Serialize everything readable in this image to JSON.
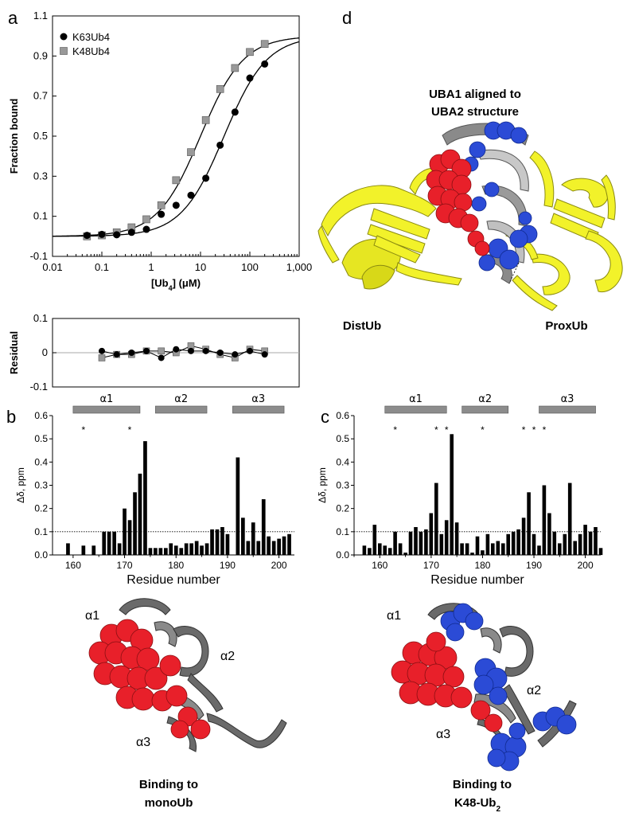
{
  "panels": {
    "a": "a",
    "b": "b",
    "c": "c",
    "d": "d"
  },
  "chart_data": [
    {
      "type": "scatter",
      "panel": "a",
      "xscale": "log",
      "xlabel": "[Ub4] (μM)",
      "ylabel": "Fraction bound",
      "xlim": [
        0.01,
        1000
      ],
      "ylim": [
        -0.1,
        1.1
      ],
      "x_tick_labels": [
        "0.01",
        "0.1",
        "1",
        "10",
        "100",
        "1,000"
      ],
      "x_tick_values": [
        0.01,
        0.1,
        1,
        10,
        100,
        1000
      ],
      "y_ticks": [
        -0.1,
        0.1,
        0.3,
        0.5,
        0.7,
        0.9,
        1.1
      ],
      "y_tick_labels": [
        "-0.1",
        "0.1",
        "0.3",
        "0.5",
        "0.7",
        "0.9",
        "1.1"
      ],
      "legend": "top-left",
      "series": [
        {
          "name": "K63Ub4",
          "marker": "circle",
          "color": "#000000",
          "kd": 30,
          "x": [
            0.05,
            0.1,
            0.2,
            0.4,
            0.8,
            1.6,
            3.2,
            6.4,
            12.8,
            25,
            50,
            100,
            200
          ],
          "y": [
            0.005,
            0.01,
            0.008,
            0.02,
            0.035,
            0.11,
            0.155,
            0.205,
            0.29,
            0.455,
            0.62,
            0.79,
            0.86
          ]
        },
        {
          "name": "K48Ub4",
          "marker": "square",
          "color": "#999999",
          "kd": 10,
          "x": [
            0.05,
            0.1,
            0.2,
            0.4,
            0.8,
            1.6,
            3.2,
            6.4,
            12.8,
            25,
            50,
            100,
            200
          ],
          "y": [
            0.0,
            0.005,
            0.02,
            0.045,
            0.085,
            0.155,
            0.28,
            0.42,
            0.58,
            0.735,
            0.84,
            0.92,
            0.96
          ]
        }
      ]
    },
    {
      "type": "scatter",
      "panel": "a-residual",
      "xscale": "log",
      "ylabel": "Residual",
      "xlim": [
        0.01,
        1000
      ],
      "ylim": [
        -0.1,
        0.1
      ],
      "y_ticks": [
        -0.1,
        0,
        0.1
      ],
      "y_tick_labels": [
        "-0.1",
        "0",
        "0.1"
      ],
      "series": [
        {
          "name": "K63Ub4",
          "marker": "circle",
          "color": "#000000",
          "x": [
            0.1,
            0.2,
            0.4,
            0.8,
            1.6,
            3.2,
            6.4,
            12.8,
            25,
            50,
            100,
            200
          ],
          "y": [
            0.005,
            -0.005,
            0.0,
            0.005,
            -0.015,
            0.01,
            0.005,
            0.005,
            0.0,
            -0.005,
            0.005,
            -0.005
          ]
        },
        {
          "name": "K48Ub4",
          "marker": "square",
          "color": "#999999",
          "x": [
            0.1,
            0.2,
            0.4,
            0.8,
            1.6,
            3.2,
            6.4,
            12.8,
            25,
            50,
            100,
            200
          ],
          "y": [
            -0.015,
            -0.005,
            -0.005,
            0.005,
            0.005,
            0.0,
            0.02,
            0.01,
            -0.005,
            -0.015,
            0.01,
            0.005
          ]
        }
      ]
    },
    {
      "type": "bar",
      "panel": "b",
      "xlabel": "Residue number",
      "ylabel": "Δδ, ppm",
      "xlim": [
        156,
        203
      ],
      "ylim": [
        0,
        0.6
      ],
      "x_ticks": [
        160,
        170,
        180,
        190,
        200
      ],
      "y_ticks": [
        0.0,
        0.1,
        0.2,
        0.3,
        0.4,
        0.5,
        0.6
      ],
      "y_tick_labels": [
        "0.0",
        "0.1",
        "0.2",
        "0.3",
        "0.4",
        "0.5",
        "0.6"
      ],
      "threshold": 0.1,
      "stars": [
        162,
        171
      ],
      "helices": [
        {
          "label": "α1",
          "start": 160,
          "end": 173
        },
        {
          "label": "α2",
          "start": 176,
          "end": 186
        },
        {
          "label": "α3",
          "start": 191,
          "end": 201
        }
      ],
      "x": [
        159,
        162,
        164,
        166,
        167,
        168,
        169,
        170,
        171,
        172,
        173,
        174,
        175,
        176,
        177,
        178,
        179,
        180,
        181,
        182,
        183,
        184,
        185,
        186,
        187,
        188,
        189,
        190,
        192,
        193,
        194,
        195,
        196,
        197,
        198,
        199,
        200,
        201,
        202
      ],
      "values": [
        0.05,
        0.04,
        0.04,
        0.1,
        0.1,
        0.1,
        0.05,
        0.2,
        0.15,
        0.27,
        0.35,
        0.49,
        0.03,
        0.03,
        0.03,
        0.03,
        0.05,
        0.04,
        0.03,
        0.05,
        0.05,
        0.06,
        0.04,
        0.05,
        0.11,
        0.11,
        0.12,
        0.09,
        0.42,
        0.16,
        0.06,
        0.14,
        0.06,
        0.24,
        0.08,
        0.06,
        0.07,
        0.08,
        0.09
      ]
    },
    {
      "type": "bar",
      "panel": "c",
      "xlabel": "Residue number",
      "ylabel": "Δδ, ppm",
      "xlim": [
        155,
        203
      ],
      "ylim": [
        0,
        0.6
      ],
      "x_ticks": [
        160,
        170,
        180,
        190,
        200
      ],
      "y_ticks": [
        0.0,
        0.1,
        0.2,
        0.3,
        0.4,
        0.5,
        0.6
      ],
      "y_tick_labels": [
        "0.0",
        "0.1",
        "0.2",
        "0.3",
        "0.4",
        "0.5",
        "0.6"
      ],
      "threshold": 0.1,
      "stars": [
        163,
        171,
        173,
        180,
        188,
        190,
        192
      ],
      "helices": [
        {
          "label": "α1",
          "start": 161,
          "end": 173
        },
        {
          "label": "α2",
          "start": 176,
          "end": 185
        },
        {
          "label": "α3",
          "start": 191,
          "end": 202
        }
      ],
      "x": [
        157,
        158,
        159,
        160,
        161,
        162,
        163,
        164,
        165,
        166,
        167,
        168,
        169,
        170,
        171,
        172,
        173,
        174,
        175,
        176,
        177,
        178,
        179,
        180,
        181,
        182,
        183,
        184,
        185,
        186,
        187,
        188,
        189,
        190,
        191,
        192,
        193,
        194,
        195,
        196,
        197,
        198,
        199,
        200,
        201,
        202,
        203
      ],
      "values": [
        0.04,
        0.03,
        0.13,
        0.05,
        0.04,
        0.03,
        0.1,
        0.05,
        0.01,
        0.1,
        0.12,
        0.1,
        0.11,
        0.18,
        0.31,
        0.09,
        0.15,
        0.52,
        0.14,
        0.05,
        0.05,
        0.01,
        0.08,
        0.02,
        0.09,
        0.05,
        0.06,
        0.05,
        0.09,
        0.1,
        0.11,
        0.16,
        0.27,
        0.09,
        0.04,
        0.3,
        0.18,
        0.1,
        0.05,
        0.09,
        0.31,
        0.06,
        0.09,
        0.13,
        0.1,
        0.12,
        0.03
      ]
    }
  ],
  "labels": {
    "b_helix_a1": "α1",
    "b_helix_a2": "α2",
    "b_helix_a3": "α3",
    "c_helix_a1": "α1",
    "c_helix_a2": "α2",
    "c_helix_a3": "α3",
    "struct_b": {
      "a1": "α1",
      "a2": "α2",
      "a3": "α3",
      "caption_1": "Binding to",
      "caption_2": "monoUb"
    },
    "struct_c": {
      "a1": "α1",
      "a2": "α2",
      "a3": "α3",
      "caption_1": "Binding to",
      "caption_2": "K48-Ub",
      "caption_2_sub": "2"
    },
    "struct_d": {
      "title_1": "UBA1 aligned to",
      "title_2": "UBA2 structure",
      "left": "DistUb",
      "right": "ProxUb"
    }
  },
  "colors": {
    "red_sphere": "#e8202a",
    "blue_sphere": "#2b4bd6",
    "yellow_ribbon": "#f2f22a",
    "gray_ribbon": "#707070",
    "helix_bar": "#8c8c8c"
  }
}
